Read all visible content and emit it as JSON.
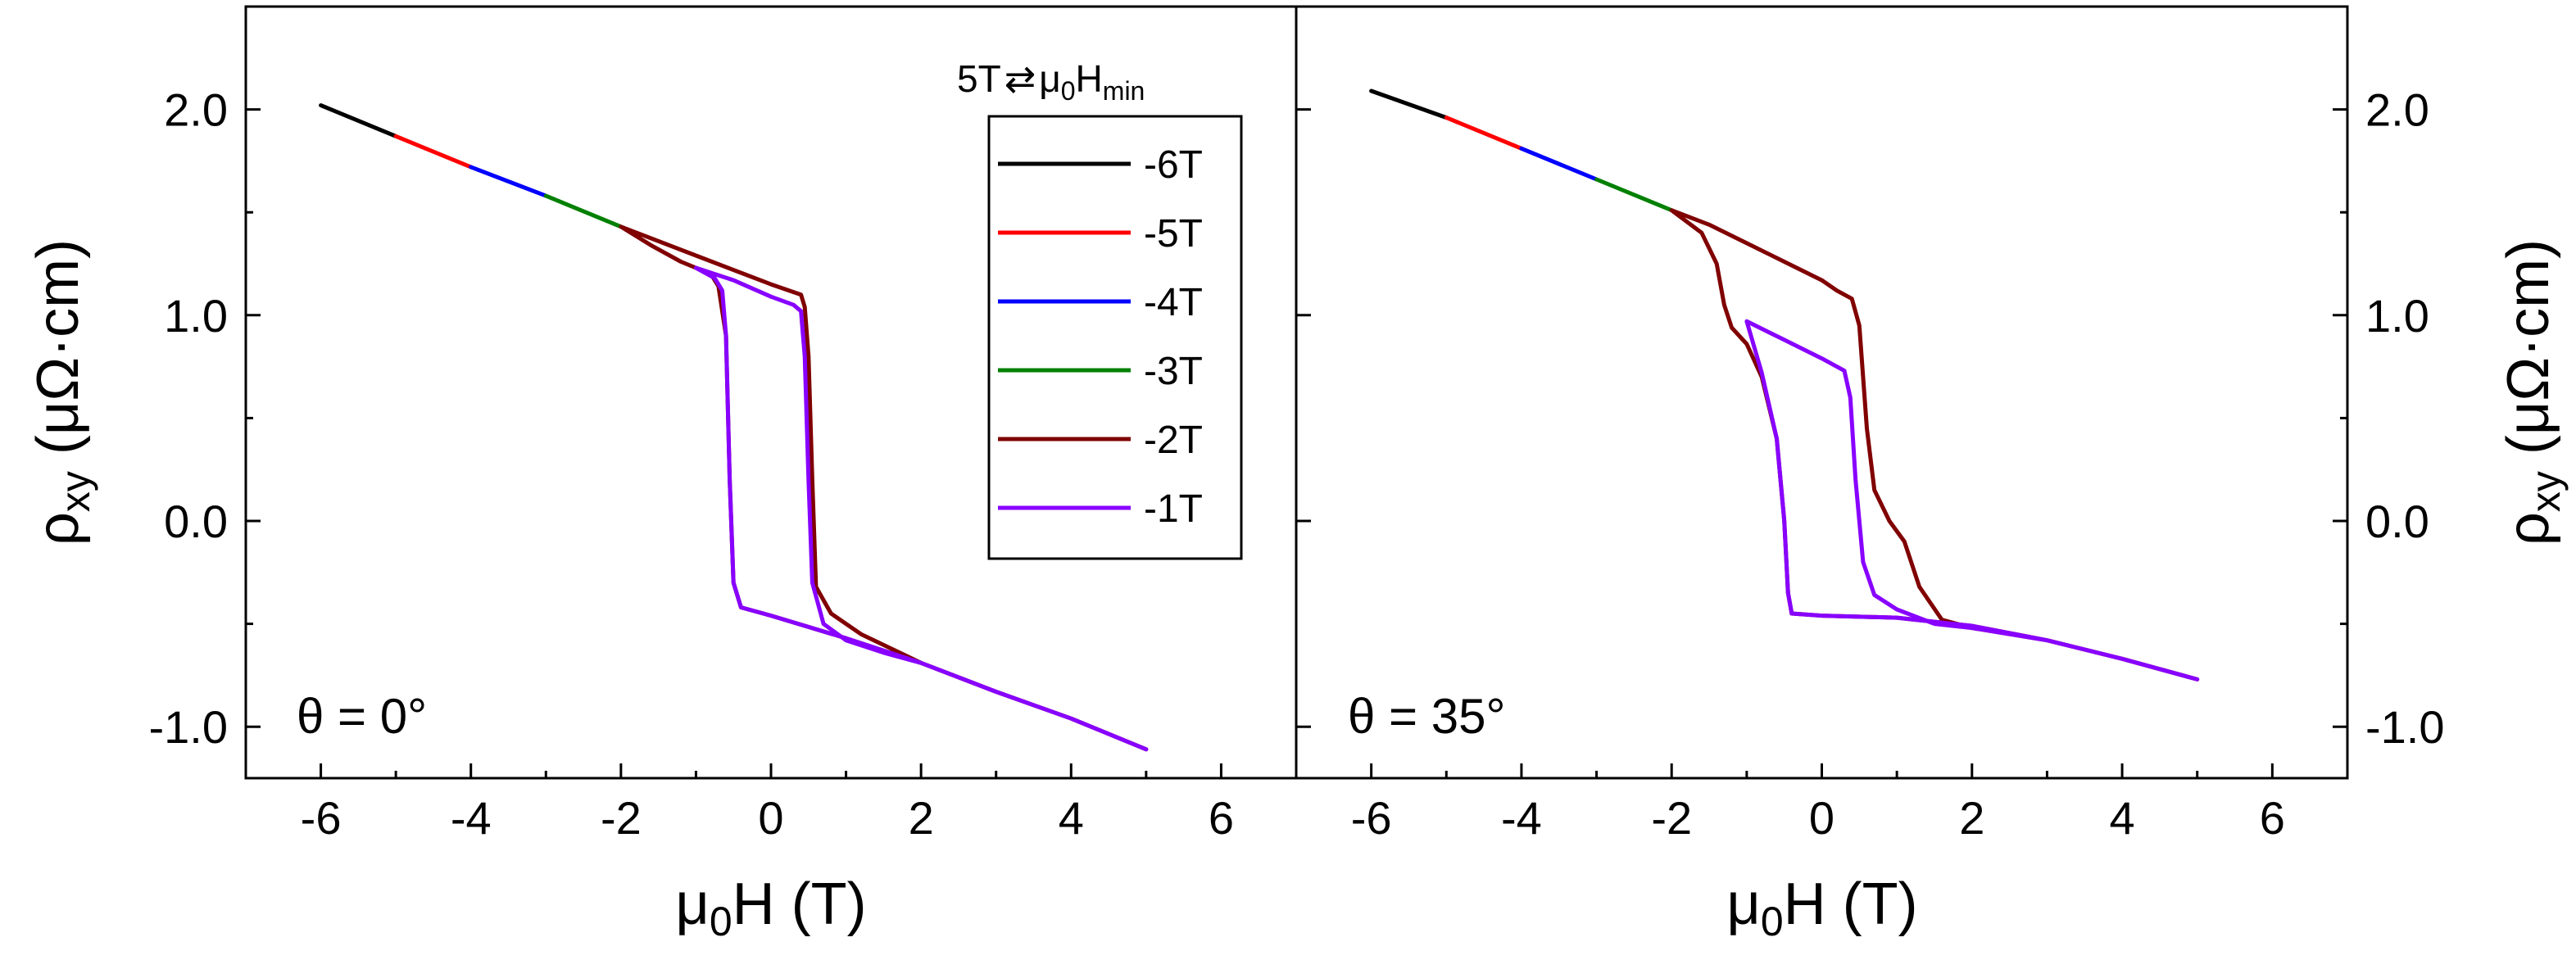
{
  "legend": {
    "title_parts": [
      "5T",
      "⇄",
      "μ",
      "0",
      "H",
      "min"
    ],
    "items": [
      {
        "label": "-6T",
        "color": "#000000"
      },
      {
        "label": "-5T",
        "color": "#ff0000"
      },
      {
        "label": "-4T",
        "color": "#0000ff"
      },
      {
        "label": "-3T",
        "color": "#008000"
      },
      {
        "label": "-2T",
        "color": "#800000"
      },
      {
        "label": "-1T",
        "color": "#8800ff"
      }
    ]
  },
  "chart_data": [
    {
      "type": "line",
      "panel": "left",
      "annotation": "θ = 0°",
      "xlabel_parts": [
        "μ",
        "0",
        "H (T)"
      ],
      "ylabel_parts": [
        "ρ",
        "xy",
        " (μΩ·cm)"
      ],
      "xlim": [
        -7,
        7
      ],
      "ylim": [
        -1.25,
        2.5
      ],
      "xticks": [
        -6,
        -4,
        -2,
        0,
        2,
        4,
        6
      ],
      "yticks": [
        -1.0,
        0.0,
        1.0,
        2.0
      ],
      "ytick_labels": [
        "-1.0",
        "0.0",
        "1.0",
        "2.0"
      ],
      "series": [
        {
          "name": "-6T",
          "color": "#000000",
          "points": [
            [
              -6.0,
              2.02
            ],
            [
              -5.0,
              1.87
            ]
          ]
        },
        {
          "name": "-5T",
          "color": "#ff0000",
          "points": [
            [
              -5.0,
              1.87
            ],
            [
              -4.0,
              1.72
            ]
          ]
        },
        {
          "name": "-4T",
          "color": "#0000ff",
          "points": [
            [
              -4.0,
              1.72
            ],
            [
              -3.0,
              1.58
            ]
          ]
        },
        {
          "name": "-3T",
          "color": "#008000",
          "points": [
            [
              -3.0,
              1.58
            ],
            [
              -2.0,
              1.43
            ]
          ]
        },
        {
          "name": "-2T",
          "color": "#800000",
          "points": [
            [
              -2.0,
              1.43
            ],
            [
              -1.6,
              1.34
            ],
            [
              -1.2,
              1.26
            ],
            [
              -0.8,
              1.2
            ],
            [
              -0.7,
              1.14
            ],
            [
              -0.6,
              0.9
            ],
            [
              -0.55,
              0.2
            ],
            [
              -0.5,
              -0.3
            ],
            [
              -0.4,
              -0.42
            ],
            [
              0.0,
              -0.46
            ],
            [
              1.0,
              -0.57
            ],
            [
              2.0,
              -0.69
            ],
            [
              3.0,
              -0.83
            ],
            [
              4.0,
              -0.96
            ],
            [
              5.0,
              -1.11
            ],
            [
              4.0,
              -0.96
            ],
            [
              3.0,
              -0.83
            ],
            [
              2.0,
              -0.69
            ],
            [
              1.6,
              -0.62
            ],
            [
              1.2,
              -0.55
            ],
            [
              0.8,
              -0.45
            ],
            [
              0.6,
              -0.32
            ],
            [
              0.55,
              0.2
            ],
            [
              0.5,
              0.8
            ],
            [
              0.45,
              1.04
            ],
            [
              0.4,
              1.1
            ],
            [
              0.0,
              1.15
            ],
            [
              -1.0,
              1.29
            ],
            [
              -2.0,
              1.43
            ]
          ]
        },
        {
          "name": "-1T",
          "color": "#8800ff",
          "points": [
            [
              -1.0,
              1.23
            ],
            [
              -0.75,
              1.18
            ],
            [
              -0.65,
              1.12
            ],
            [
              -0.6,
              0.9
            ],
            [
              -0.55,
              0.2
            ],
            [
              -0.5,
              -0.3
            ],
            [
              -0.4,
              -0.42
            ],
            [
              0.0,
              -0.46
            ],
            [
              1.0,
              -0.57
            ],
            [
              2.0,
              -0.69
            ],
            [
              3.0,
              -0.83
            ],
            [
              4.0,
              -0.96
            ],
            [
              5.0,
              -1.11
            ],
            [
              4.0,
              -0.96
            ],
            [
              3.0,
              -0.83
            ],
            [
              2.0,
              -0.69
            ],
            [
              1.5,
              -0.64
            ],
            [
              1.0,
              -0.58
            ],
            [
              0.7,
              -0.5
            ],
            [
              0.55,
              -0.3
            ],
            [
              0.5,
              0.2
            ],
            [
              0.45,
              0.8
            ],
            [
              0.4,
              1.02
            ],
            [
              0.3,
              1.05
            ],
            [
              0.0,
              1.09
            ],
            [
              -0.5,
              1.17
            ],
            [
              -1.0,
              1.23
            ]
          ]
        }
      ]
    },
    {
      "type": "line",
      "panel": "right",
      "annotation": "θ = 35°",
      "xlabel_parts": [
        "μ",
        "0",
        "H (T)"
      ],
      "ylabel_parts": [
        "ρ",
        "xy",
        " (μΩ·cm)"
      ],
      "xlim": [
        -7,
        7
      ],
      "ylim": [
        -1.25,
        2.5
      ],
      "xticks": [
        -6,
        -4,
        -2,
        0,
        2,
        4,
        6
      ],
      "yticks": [
        -1.0,
        0.0,
        1.0,
        2.0
      ],
      "ytick_labels": [
        "-1.0",
        "0.0",
        "1.0",
        "2.0"
      ],
      "series": [
        {
          "name": "-6T",
          "color": "#000000",
          "points": [
            [
              -6.0,
              2.09
            ],
            [
              -5.0,
              1.96
            ]
          ]
        },
        {
          "name": "-5T",
          "color": "#ff0000",
          "points": [
            [
              -5.0,
              1.96
            ],
            [
              -4.0,
              1.81
            ]
          ]
        },
        {
          "name": "-4T",
          "color": "#0000ff",
          "points": [
            [
              -4.0,
              1.81
            ],
            [
              -3.0,
              1.66
            ]
          ]
        },
        {
          "name": "-3T",
          "color": "#008000",
          "points": [
            [
              -3.0,
              1.66
            ],
            [
              -2.0,
              1.51
            ]
          ]
        },
        {
          "name": "-2T",
          "color": "#800000",
          "points": [
            [
              -2.0,
              1.51
            ],
            [
              -1.6,
              1.4
            ],
            [
              -1.4,
              1.25
            ],
            [
              -1.3,
              1.05
            ],
            [
              -1.2,
              0.94
            ],
            [
              -1.0,
              0.86
            ],
            [
              -0.8,
              0.7
            ],
            [
              -0.6,
              0.4
            ],
            [
              -0.5,
              0.0
            ],
            [
              -0.45,
              -0.35
            ],
            [
              -0.4,
              -0.45
            ],
            [
              0.0,
              -0.46
            ],
            [
              1.0,
              -0.47
            ],
            [
              2.0,
              -0.51
            ],
            [
              3.0,
              -0.58
            ],
            [
              4.0,
              -0.67
            ],
            [
              5.0,
              -0.77
            ],
            [
              4.0,
              -0.67
            ],
            [
              3.0,
              -0.58
            ],
            [
              2.0,
              -0.52
            ],
            [
              1.6,
              -0.48
            ],
            [
              1.3,
              -0.32
            ],
            [
              1.1,
              -0.1
            ],
            [
              0.9,
              0.0
            ],
            [
              0.7,
              0.15
            ],
            [
              0.6,
              0.45
            ],
            [
              0.5,
              0.95
            ],
            [
              0.4,
              1.08
            ],
            [
              0.2,
              1.12
            ],
            [
              0.0,
              1.17
            ],
            [
              -0.5,
              1.26
            ],
            [
              -1.0,
              1.35
            ],
            [
              -1.5,
              1.44
            ],
            [
              -2.0,
              1.51
            ]
          ]
        },
        {
          "name": "-1T",
          "color": "#8800ff",
          "points": [
            [
              -1.0,
              0.97
            ],
            [
              -0.8,
              0.72
            ],
            [
              -0.6,
              0.4
            ],
            [
              -0.5,
              0.0
            ],
            [
              -0.45,
              -0.35
            ],
            [
              -0.4,
              -0.45
            ],
            [
              0.0,
              -0.46
            ],
            [
              1.0,
              -0.47
            ],
            [
              2.0,
              -0.51
            ],
            [
              3.0,
              -0.58
            ],
            [
              4.0,
              -0.67
            ],
            [
              5.0,
              -0.77
            ],
            [
              4.0,
              -0.67
            ],
            [
              3.0,
              -0.58
            ],
            [
              2.0,
              -0.52
            ],
            [
              1.5,
              -0.5
            ],
            [
              1.0,
              -0.43
            ],
            [
              0.7,
              -0.36
            ],
            [
              0.55,
              -0.2
            ],
            [
              0.45,
              0.2
            ],
            [
              0.38,
              0.6
            ],
            [
              0.3,
              0.73
            ],
            [
              0.0,
              0.79
            ],
            [
              -0.5,
              0.88
            ],
            [
              -1.0,
              0.97
            ]
          ]
        }
      ]
    }
  ]
}
